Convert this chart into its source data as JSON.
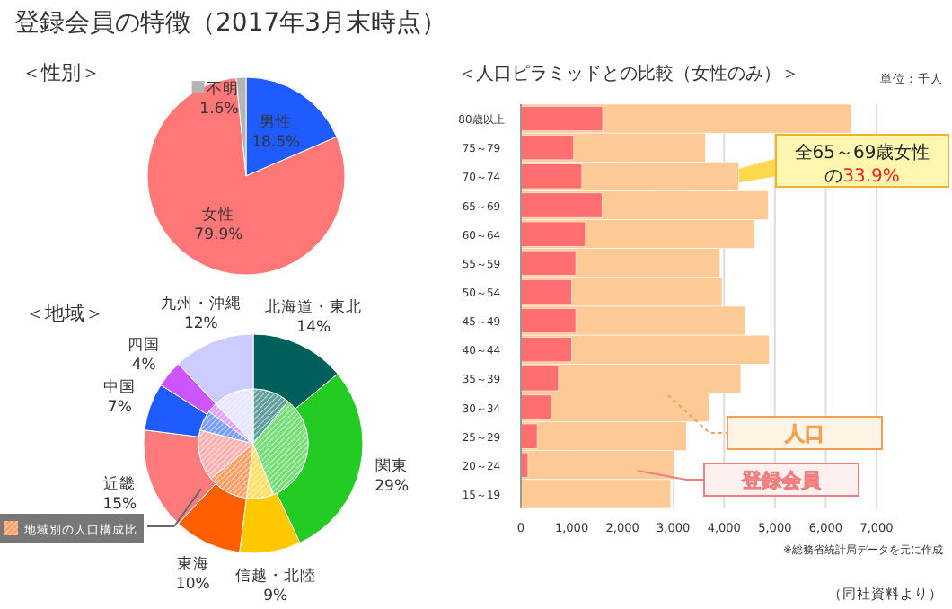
{
  "chart_data": [
    {
      "type": "pie",
      "title": "登録会員の特徴（2017年3月末時点）",
      "subtitle": "＜性別＞",
      "categories": [
        "男性",
        "女性",
        "不明"
      ],
      "values": [
        18.5,
        79.9,
        1.6
      ],
      "colors": [
        "#1f5cff",
        "#ff7777",
        "#b4b4b4"
      ],
      "value_labels": [
        "18.5%",
        "79.9%",
        "1.6%"
      ]
    },
    {
      "type": "donut",
      "title": "＜地域＞",
      "categories": [
        "北海道・東北",
        "関東",
        "信越・北陸",
        "東海",
        "近畿",
        "中国",
        "四国",
        "九州・沖縄"
      ],
      "series": [
        {
          "values": [
            14,
            29,
            9,
            10,
            15,
            7,
            4,
            12
          ],
          "colors": [
            "#005f5a",
            "#22cc22",
            "#ffc800",
            "#ff5f00",
            "#ff7b7b",
            "#1f5cff",
            "#cc55ff",
            "#ccccff"
          ],
          "value_labels": [
            "14%",
            "29%",
            "9%",
            "10%",
            "15%",
            "7%",
            "4%",
            "12%"
          ]
        },
        {
          "name": "地域別の人口構成比",
          "values": [
            11,
            33,
            8,
            12,
            15,
            6,
            3,
            12
          ],
          "colors": [
            "#5f9f9c",
            "#77dd77",
            "#ffe066",
            "#ff9f66",
            "#ffb0b0",
            "#779dff",
            "#e0a0ff",
            "#e6e6ff"
          ]
        }
      ]
    },
    {
      "type": "bar",
      "orientation": "horizontal",
      "title": "＜人口ピラミッドとの比較（女性のみ）＞",
      "categories": [
        "80歳以上",
        "75～79",
        "70～74",
        "65～69",
        "60～64",
        "55～59",
        "50～54",
        "45～49",
        "40～44",
        "35～39",
        "30～34",
        "25～29",
        "20～24",
        "15～19"
      ],
      "series": [
        {
          "name": "人口",
          "color": "#fdc994",
          "values": [
            6500,
            3630,
            4290,
            4870,
            4600,
            3920,
            3960,
            4420,
            4890,
            4330,
            3700,
            3260,
            3020,
            2950
          ]
        },
        {
          "name": "登録会員",
          "color": "#ff6f6f",
          "values": [
            1610,
            1040,
            1200,
            1600,
            1270,
            1080,
            1000,
            1080,
            1000,
            740,
            590,
            320,
            140,
            null
          ]
        }
      ],
      "xlim": [
        0,
        7000
      ],
      "xticks": [
        0,
        {
          "value": 1000,
          "label": "1,000"
        },
        {
          "value": 2000,
          "label": "2,000"
        },
        {
          "value": 3000,
          "label": "3,000"
        },
        {
          "value": 4000,
          "label": "4,000"
        },
        {
          "value": 5000,
          "label": "5,000"
        },
        {
          "value": 6000,
          "label": "6,000"
        },
        {
          "value": 7000,
          "label": "7,000"
        }
      ],
      "grid": "x",
      "legend": "bottom right",
      "annotations": [
        "単位：千人",
        {
          "text": "全65～69歳女性の33.9%",
          "x": 1600,
          "y": "65～69"
        },
        "※総務省統計局データを元に作成",
        "（同社資料より）"
      ]
    }
  ]
}
